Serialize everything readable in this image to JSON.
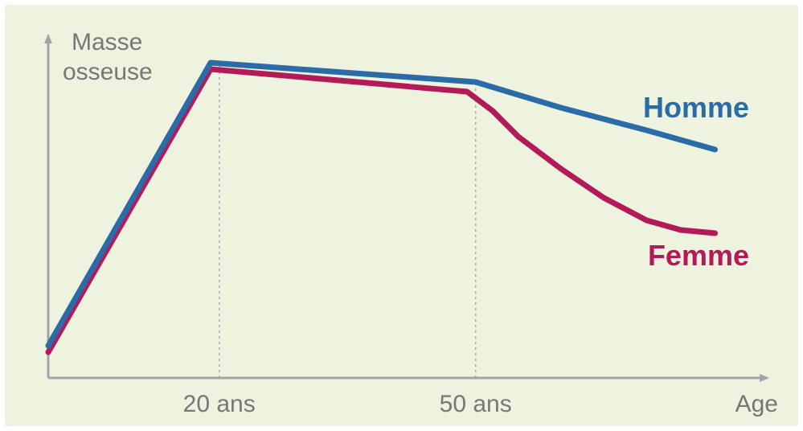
{
  "chart_data": {
    "type": "line",
    "ylabel_lines": [
      "Masse",
      "osseuse"
    ],
    "xlabel": "Age",
    "x_ticks": [
      {
        "x": 20,
        "label": "20 ans"
      },
      {
        "x": 50,
        "label": "50 ans"
      }
    ],
    "xlim": [
      0,
      82
    ],
    "ylim": [
      0,
      100
    ],
    "grid": false,
    "series": [
      {
        "name": "Homme",
        "color": "#2a6ba8",
        "points": [
          [
            0,
            10
          ],
          [
            19,
            98
          ],
          [
            50,
            92
          ],
          [
            60,
            84
          ],
          [
            70,
            77
          ],
          [
            78,
            71
          ]
        ]
      },
      {
        "name": "Femme",
        "color": "#b41a58",
        "points": [
          [
            0,
            8
          ],
          [
            19,
            96
          ],
          [
            49,
            89
          ],
          [
            52,
            83
          ],
          [
            55,
            75
          ],
          [
            60,
            65
          ],
          [
            65,
            56
          ],
          [
            70,
            49
          ],
          [
            74,
            46
          ],
          [
            78,
            45
          ]
        ]
      }
    ]
  }
}
